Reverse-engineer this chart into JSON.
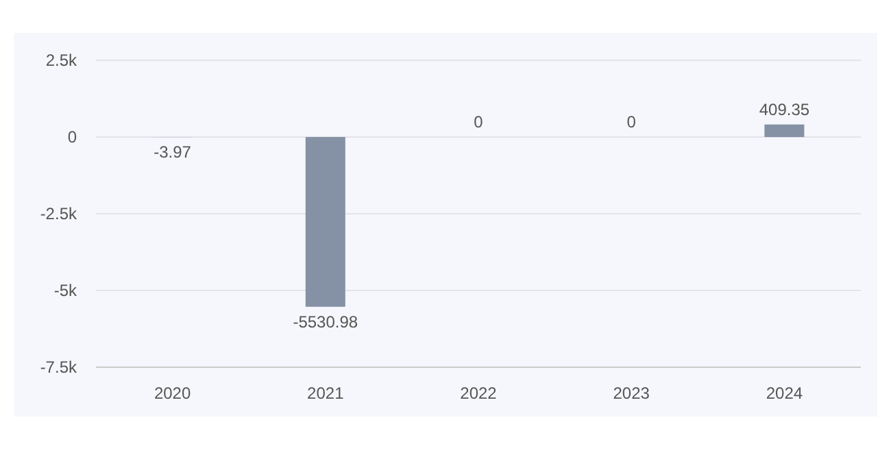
{
  "chart_data": {
    "type": "bar",
    "categories": [
      "2020",
      "2021",
      "2022",
      "2023",
      "2024"
    ],
    "values": [
      -3.97,
      -5530.98,
      0,
      0,
      409.35
    ],
    "value_labels": [
      "-3.97",
      "-5530.98",
      "0",
      "0",
      "409.35"
    ],
    "color": "#8592a6",
    "ylim": [
      -7500,
      2500
    ],
    "yticks": [
      {
        "value": -7500,
        "label": "-7.5k"
      },
      {
        "value": -5000,
        "label": "-5k"
      },
      {
        "value": -2500,
        "label": "-2.5k"
      },
      {
        "value": 0,
        "label": "0"
      },
      {
        "value": 2500,
        "label": "2.5k"
      }
    ],
    "grid": "y"
  }
}
